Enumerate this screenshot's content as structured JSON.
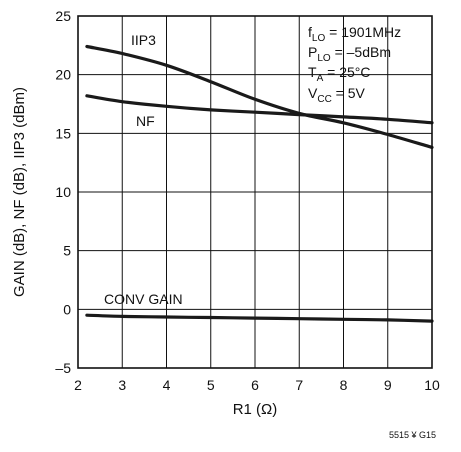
{
  "chart_data": {
    "type": "line",
    "xlabel": "R1 (Ω)",
    "ylabel": "GAIN (dB), NF (dB), IIP3 (dBm)",
    "xlim": [
      2,
      10
    ],
    "ylim": [
      -5,
      25
    ],
    "xticks": [
      "2",
      "3",
      "4",
      "5",
      "6",
      "7",
      "8",
      "9",
      "10"
    ],
    "yticks": [
      "–5",
      "0",
      "5",
      "10",
      "15",
      "20",
      "25"
    ],
    "grid": true,
    "series": [
      {
        "name": "IIP3",
        "x": [
          2.2,
          3,
          4,
          5,
          6,
          7,
          8,
          9,
          10
        ],
        "y": [
          22.4,
          21.8,
          20.8,
          19.4,
          17.9,
          16.7,
          15.9,
          14.9,
          13.8
        ]
      },
      {
        "name": "NF",
        "x": [
          2.2,
          3,
          4,
          5,
          6,
          7,
          8,
          9,
          10
        ],
        "y": [
          18.2,
          17.7,
          17.3,
          17.0,
          16.8,
          16.6,
          16.4,
          16.2,
          15.9
        ]
      },
      {
        "name": "CONV GAIN",
        "x": [
          2.2,
          3,
          4,
          5,
          6,
          7,
          8,
          9,
          10
        ],
        "y": [
          -0.5,
          -0.6,
          -0.65,
          -0.7,
          -0.75,
          -0.8,
          -0.85,
          -0.9,
          -1.0
        ]
      }
    ],
    "conditions": {
      "flo_main": "f",
      "flo_sub": "LO",
      "flo_val": " = 1901MHz",
      "plo_main": "P",
      "plo_sub": "LO",
      "plo_val": " = –5dBm",
      "ta_main": "T",
      "ta_sub": "A",
      "ta_val": " = 25°C",
      "vcc_main": "V",
      "vcc_sub": "CC",
      "vcc_val": " = 5V"
    },
    "footer": "5515 ¥ G15"
  }
}
